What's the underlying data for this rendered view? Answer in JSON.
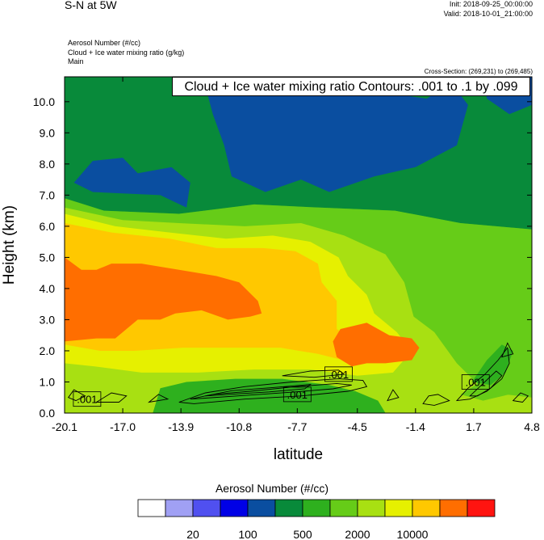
{
  "header": {
    "title": "S-N at 5W",
    "init": "Init: 2018-09-25_00:00:00",
    "valid": "Valid: 2018-10-01_21:00:00",
    "field1": "Aerosol Number   (#/cc)",
    "field2": "Cloud + Ice water mixing ratio   (g/kg)",
    "field3": "Main",
    "cross_section": "Cross-Section: (269,231) to (269,485)"
  },
  "contour_label": "Cloud + Ice water mixing ratio Contours: .001 to .1 by .099",
  "chart_data": {
    "type": "heatmap",
    "xlabel": "latitude",
    "ylabel": "Height (km)",
    "xlim": [
      -20.1,
      4.8
    ],
    "ylim": [
      0.0,
      10.8
    ],
    "x_ticks": [
      "-20.1",
      "-17.0",
      "-13.9",
      "-10.8",
      "-7.7",
      "-4.5",
      "-1.4",
      "1.7",
      "4.8"
    ],
    "y_ticks": [
      "0.0",
      "1.0",
      "2.0",
      "3.0",
      "4.0",
      "5.0",
      "6.0",
      "7.0",
      "8.0",
      "9.0",
      "10.0"
    ],
    "colorbar_title": "Aerosol Number  (#/cc)",
    "colorbar_colors": [
      "#ffffff",
      "#a0a0f4",
      "#5050f0",
      "#0000e6",
      "#0a4ea0",
      "#088a3a",
      "#2eb01e",
      "#66cc18",
      "#a8e012",
      "#e6f000",
      "#ffc800",
      "#ff6e00",
      "#ff1410"
    ],
    "colorbar_labels": [
      "20",
      "100",
      "500",
      "2000",
      "10000"
    ],
    "contour_labels": [
      {
        "text": ".001",
        "x": -18.9,
        "y": 0.45
      },
      {
        "text": ".001",
        "x": -7.7,
        "y": 0.6
      },
      {
        "text": ".001",
        "x": -5.5,
        "y": 1.25
      },
      {
        "text": ".001",
        "x": 1.8,
        "y": 1.0
      }
    ]
  }
}
